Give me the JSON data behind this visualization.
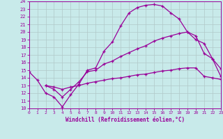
{
  "background_color": "#c8eaea",
  "grid_color": "#b0c8c8",
  "line_color": "#990099",
  "xlabel": "Windchill (Refroidissement éolien,°C)",
  "xlim": [
    0,
    23
  ],
  "ylim": [
    10,
    24
  ],
  "xticks": [
    0,
    1,
    2,
    3,
    4,
    5,
    6,
    7,
    8,
    9,
    10,
    11,
    12,
    13,
    14,
    15,
    16,
    17,
    18,
    19,
    20,
    21,
    22,
    23
  ],
  "yticks": [
    10,
    11,
    12,
    13,
    14,
    15,
    16,
    17,
    18,
    19,
    20,
    21,
    22,
    23,
    24
  ],
  "curve1_x": [
    0,
    1,
    2,
    3,
    4,
    5,
    6,
    7,
    8,
    9,
    10,
    11,
    12,
    13,
    14,
    15,
    16,
    17,
    18,
    19,
    20,
    21,
    22,
    23
  ],
  "curve1_y": [
    14.8,
    13.7,
    12.0,
    11.5,
    10.2,
    11.8,
    13.2,
    15.0,
    15.3,
    17.5,
    18.7,
    20.8,
    22.5,
    23.2,
    23.5,
    23.6,
    23.4,
    22.5,
    21.7,
    20.0,
    19.0,
    18.5,
    16.5,
    15.2
  ],
  "curve2_x": [
    2,
    3,
    4,
    5,
    6,
    7,
    8,
    9,
    10,
    11,
    12,
    13,
    14,
    15,
    16,
    17,
    18,
    19,
    20,
    21,
    22,
    23
  ],
  "curve2_y": [
    13.0,
    12.5,
    11.5,
    12.5,
    13.5,
    14.8,
    15.0,
    15.8,
    16.2,
    16.8,
    17.3,
    17.8,
    18.2,
    18.8,
    19.2,
    19.5,
    19.8,
    20.0,
    19.5,
    17.2,
    16.5,
    14.2
  ],
  "curve3_x": [
    2,
    3,
    4,
    5,
    6,
    7,
    8,
    9,
    10,
    11,
    12,
    13,
    14,
    15,
    16,
    17,
    18,
    19,
    20,
    21,
    22,
    23
  ],
  "curve3_y": [
    13.0,
    12.8,
    12.5,
    12.8,
    13.0,
    13.3,
    13.5,
    13.7,
    13.9,
    14.0,
    14.2,
    14.4,
    14.5,
    14.7,
    14.9,
    15.0,
    15.2,
    15.3,
    15.3,
    14.2,
    14.0,
    13.8
  ]
}
